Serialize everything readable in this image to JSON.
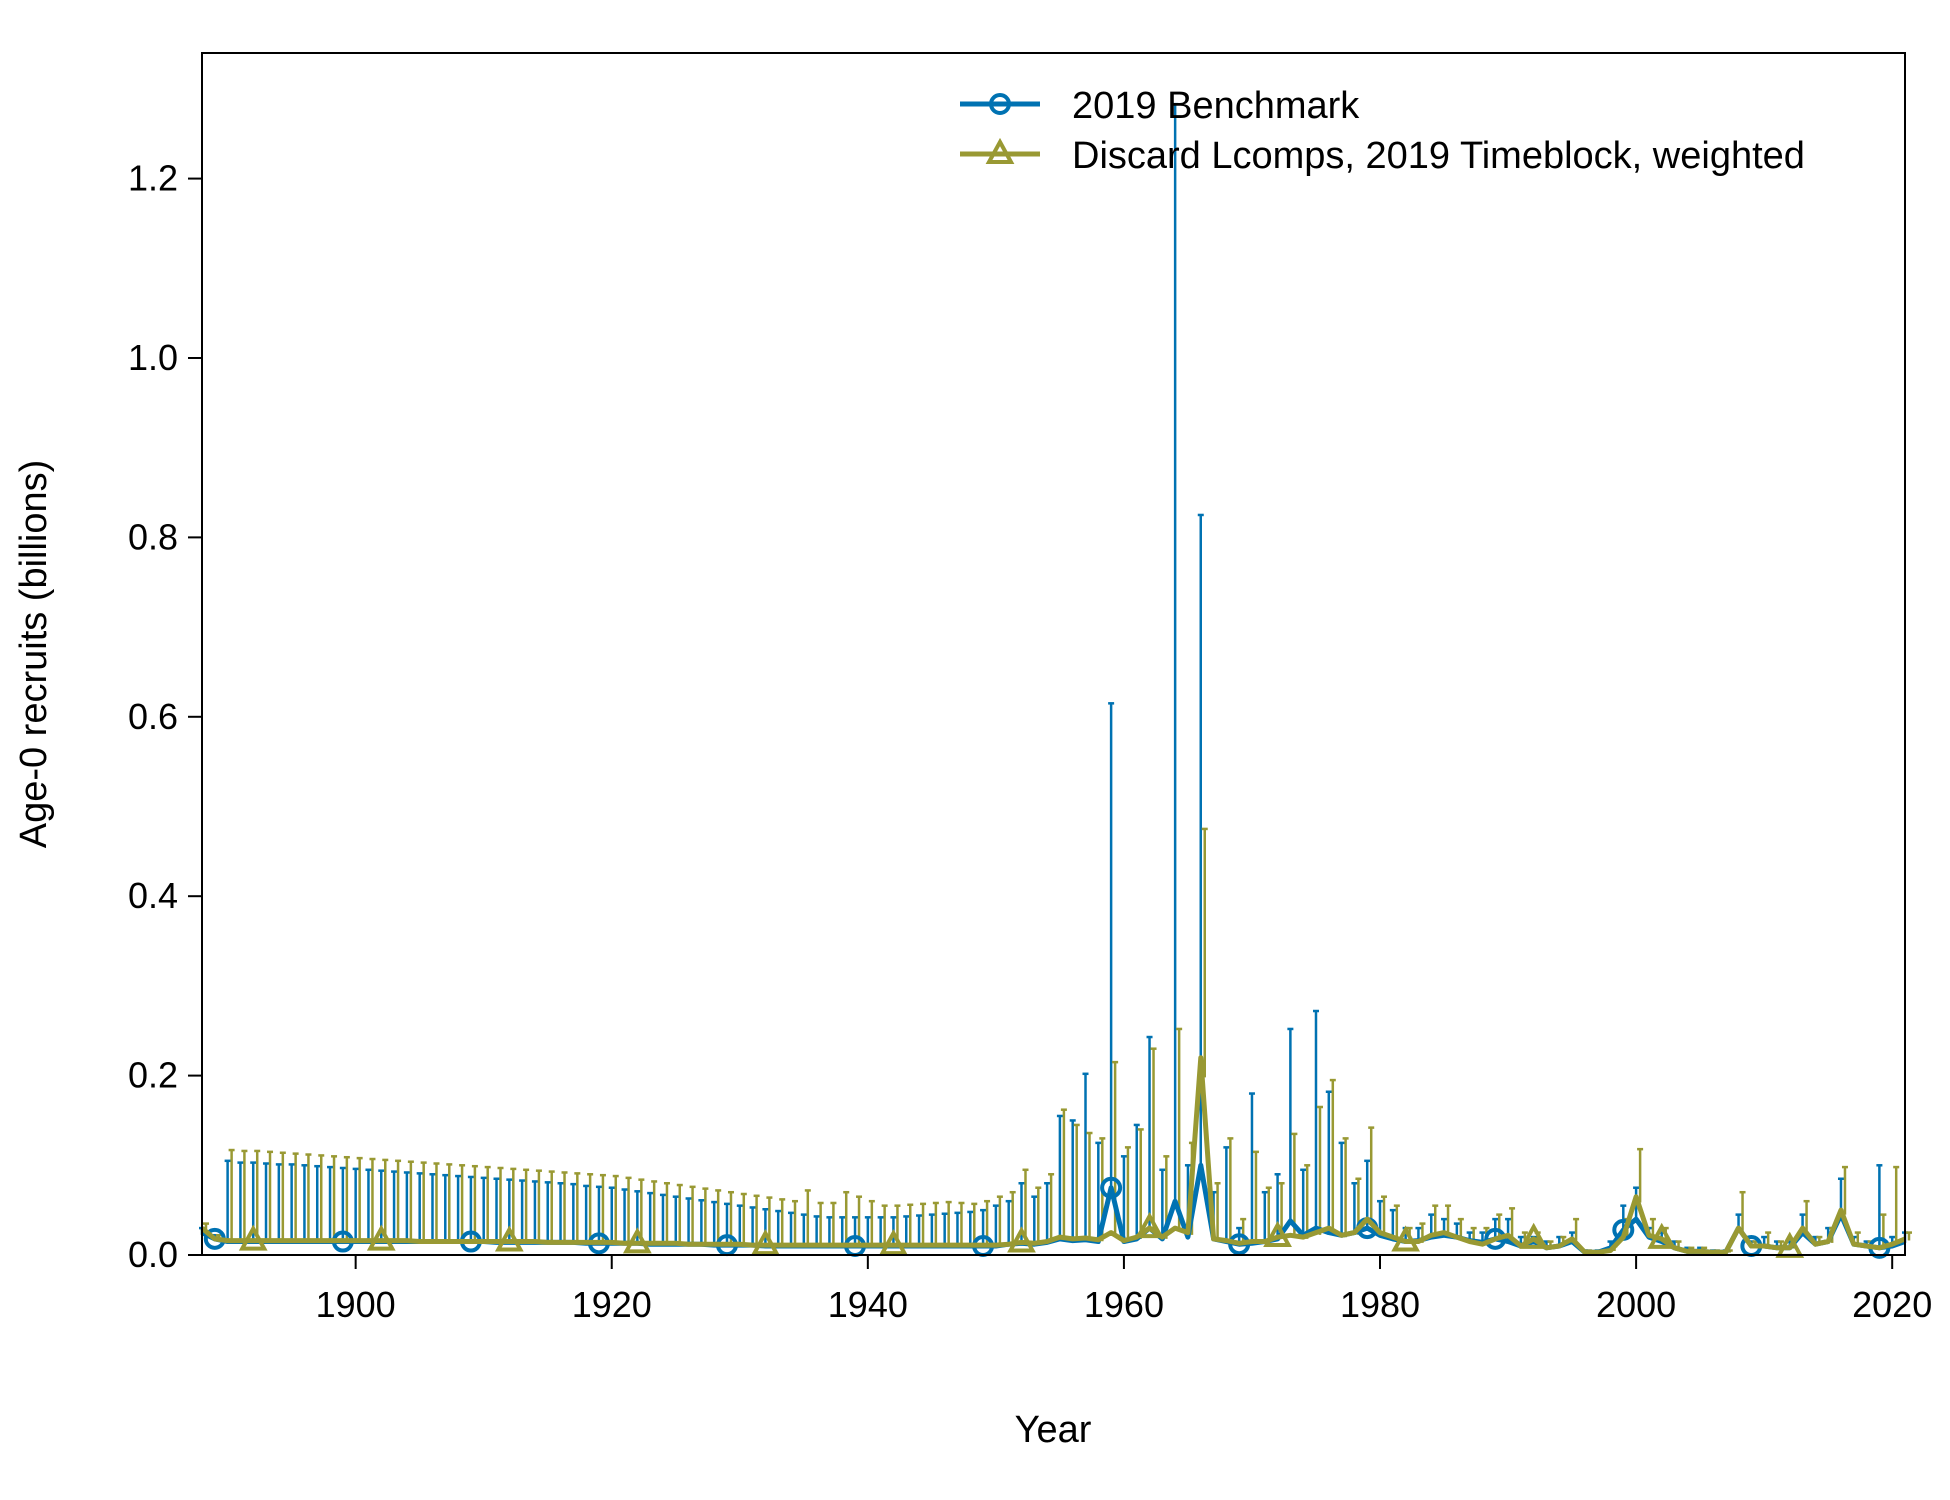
{
  "chart_data": {
    "type": "line",
    "xlabel": "Year",
    "ylabel": "Age-0 recruits (billions)",
    "xlim": [
      1888,
      2021
    ],
    "ylim": [
      0,
      1.34
    ],
    "x_ticks": [
      1900,
      1920,
      1940,
      1960,
      1980,
      2000,
      2020
    ],
    "x_tick_labels": [
      "1900",
      "1920",
      "1940",
      "1960",
      "1980",
      "2000",
      "2020"
    ],
    "y_ticks": [
      0.0,
      0.2,
      0.4,
      0.6,
      0.8,
      1.0,
      1.2
    ],
    "y_tick_labels": [
      "0.0",
      "0.2",
      "0.4",
      "0.6",
      "0.8",
      "1.0",
      "1.2"
    ],
    "legend_position": "top-right",
    "series": [
      {
        "name": "2019 Benchmark",
        "color": "#0072B2",
        "marker": "circle",
        "x": [
          1888,
          1889,
          1890,
          1891,
          1892,
          1893,
          1894,
          1895,
          1896,
          1897,
          1898,
          1899,
          1900,
          1901,
          1902,
          1903,
          1904,
          1905,
          1906,
          1907,
          1908,
          1909,
          1910,
          1911,
          1912,
          1913,
          1914,
          1915,
          1916,
          1917,
          1918,
          1919,
          1920,
          1921,
          1922,
          1923,
          1924,
          1925,
          1926,
          1927,
          1928,
          1929,
          1930,
          1931,
          1932,
          1933,
          1934,
          1935,
          1936,
          1937,
          1938,
          1939,
          1940,
          1941,
          1942,
          1943,
          1944,
          1945,
          1946,
          1947,
          1948,
          1949,
          1950,
          1951,
          1952,
          1953,
          1954,
          1955,
          1956,
          1957,
          1958,
          1959,
          1960,
          1961,
          1962,
          1963,
          1964,
          1965,
          1966,
          1967,
          1968,
          1969,
          1970,
          1971,
          1972,
          1973,
          1974,
          1975,
          1976,
          1977,
          1978,
          1979,
          1980,
          1981,
          1982,
          1983,
          1984,
          1985,
          1986,
          1987,
          1988,
          1989,
          1990,
          1991,
          1992,
          1993,
          1994,
          1995,
          1996,
          1997,
          1998,
          1999,
          2000,
          2001,
          2002,
          2003,
          2004,
          2005,
          2006,
          2007,
          2008,
          2009,
          2010,
          2011,
          2012,
          2013,
          2014,
          2015,
          2016,
          2017,
          2018,
          2019,
          2020,
          2021
        ],
        "values": [
          0.025,
          0.018,
          0.015,
          0.015,
          0.015,
          0.015,
          0.015,
          0.015,
          0.015,
          0.015,
          0.015,
          0.015,
          0.015,
          0.015,
          0.015,
          0.015,
          0.015,
          0.015,
          0.015,
          0.015,
          0.015,
          0.015,
          0.015,
          0.014,
          0.014,
          0.014,
          0.014,
          0.014,
          0.014,
          0.014,
          0.013,
          0.013,
          0.013,
          0.013,
          0.013,
          0.012,
          0.012,
          0.012,
          0.012,
          0.012,
          0.011,
          0.011,
          0.011,
          0.011,
          0.01,
          0.01,
          0.01,
          0.01,
          0.01,
          0.01,
          0.01,
          0.01,
          0.01,
          0.01,
          0.01,
          0.01,
          0.01,
          0.01,
          0.01,
          0.01,
          0.01,
          0.01,
          0.01,
          0.012,
          0.013,
          0.012,
          0.014,
          0.018,
          0.016,
          0.017,
          0.015,
          0.075,
          0.015,
          0.018,
          0.03,
          0.018,
          0.06,
          0.02,
          0.1,
          0.018,
          0.015,
          0.012,
          0.013,
          0.015,
          0.018,
          0.038,
          0.022,
          0.03,
          0.025,
          0.022,
          0.025,
          0.03,
          0.022,
          0.018,
          0.015,
          0.016,
          0.02,
          0.022,
          0.02,
          0.016,
          0.014,
          0.018,
          0.015,
          0.01,
          0.015,
          0.008,
          0.01,
          0.015,
          0.003,
          0.003,
          0.008,
          0.028,
          0.04,
          0.02,
          0.015,
          0.008,
          0.004,
          0.004,
          0.003,
          0.003,
          0.03,
          0.01,
          0.01,
          0.008,
          0.008,
          0.025,
          0.012,
          0.015,
          0.045,
          0.012,
          0.01,
          0.008,
          0.01,
          0.015
        ],
        "upper": [
          0.03,
          0.022,
          0.105,
          0.103,
          0.103,
          0.102,
          0.101,
          0.101,
          0.1,
          0.099,
          0.098,
          0.097,
          0.096,
          0.095,
          0.094,
          0.093,
          0.092,
          0.091,
          0.09,
          0.089,
          0.088,
          0.087,
          0.086,
          0.085,
          0.084,
          0.083,
          0.082,
          0.081,
          0.08,
          0.079,
          0.077,
          0.076,
          0.075,
          0.073,
          0.071,
          0.069,
          0.067,
          0.065,
          0.063,
          0.061,
          0.059,
          0.057,
          0.055,
          0.053,
          0.051,
          0.049,
          0.047,
          0.045,
          0.043,
          0.042,
          0.042,
          0.042,
          0.042,
          0.042,
          0.042,
          0.043,
          0.044,
          0.045,
          0.046,
          0.047,
          0.048,
          0.05,
          0.055,
          0.06,
          0.08,
          0.065,
          0.08,
          0.155,
          0.15,
          0.202,
          0.125,
          0.615,
          0.11,
          0.145,
          0.243,
          0.095,
          1.283,
          0.1,
          0.825,
          0.07,
          0.12,
          0.03,
          0.18,
          0.07,
          0.09,
          0.252,
          0.095,
          0.272,
          0.182,
          0.125,
          0.08,
          0.105,
          0.06,
          0.05,
          0.03,
          0.03,
          0.045,
          0.04,
          0.035,
          0.025,
          0.025,
          0.04,
          0.04,
          0.02,
          0.02,
          0.015,
          0.02,
          0.025,
          0.005,
          0.005,
          0.015,
          0.055,
          0.075,
          0.03,
          0.025,
          0.015,
          0.008,
          0.008,
          0.005,
          0.005,
          0.045,
          0.015,
          0.02,
          0.015,
          0.015,
          0.045,
          0.02,
          0.03,
          0.085,
          0.02,
          0.015,
          0.1,
          0.02,
          0.025
        ]
      },
      {
        "name": "Discard Lcomps, 2019 Timeblock, weighted",
        "color": "#999933",
        "marker": "triangle",
        "x": [
          1888,
          1889,
          1890,
          1891,
          1892,
          1893,
          1894,
          1895,
          1896,
          1897,
          1898,
          1899,
          1900,
          1901,
          1902,
          1903,
          1904,
          1905,
          1906,
          1907,
          1908,
          1909,
          1910,
          1911,
          1912,
          1913,
          1914,
          1915,
          1916,
          1917,
          1918,
          1919,
          1920,
          1921,
          1922,
          1923,
          1924,
          1925,
          1926,
          1927,
          1928,
          1929,
          1930,
          1931,
          1932,
          1933,
          1934,
          1935,
          1936,
          1937,
          1938,
          1939,
          1940,
          1941,
          1942,
          1943,
          1944,
          1945,
          1946,
          1947,
          1948,
          1949,
          1950,
          1951,
          1952,
          1953,
          1954,
          1955,
          1956,
          1957,
          1958,
          1959,
          1960,
          1961,
          1962,
          1963,
          1964,
          1965,
          1966,
          1967,
          1968,
          1969,
          1970,
          1971,
          1972,
          1973,
          1974,
          1975,
          1976,
          1977,
          1978,
          1979,
          1980,
          1981,
          1982,
          1983,
          1984,
          1985,
          1986,
          1987,
          1988,
          1989,
          1990,
          1991,
          1992,
          1993,
          1994,
          1995,
          1996,
          1997,
          1998,
          1999,
          2000,
          2001,
          2002,
          2003,
          2004,
          2005,
          2006,
          2007,
          2008,
          2009,
          2010,
          2011,
          2012,
          2013,
          2014,
          2015,
          2016,
          2017,
          2018,
          2019,
          2020,
          2021
        ],
        "values": [
          0.03,
          0.018,
          0.016,
          0.016,
          0.016,
          0.016,
          0.016,
          0.016,
          0.016,
          0.016,
          0.016,
          0.016,
          0.016,
          0.016,
          0.016,
          0.016,
          0.016,
          0.015,
          0.015,
          0.015,
          0.015,
          0.015,
          0.015,
          0.015,
          0.015,
          0.015,
          0.015,
          0.014,
          0.014,
          0.014,
          0.014,
          0.014,
          0.014,
          0.013,
          0.013,
          0.013,
          0.013,
          0.013,
          0.012,
          0.012,
          0.012,
          0.012,
          0.012,
          0.011,
          0.011,
          0.011,
          0.011,
          0.011,
          0.011,
          0.011,
          0.011,
          0.011,
          0.011,
          0.011,
          0.011,
          0.011,
          0.011,
          0.011,
          0.011,
          0.011,
          0.011,
          0.011,
          0.011,
          0.012,
          0.014,
          0.013,
          0.015,
          0.02,
          0.018,
          0.019,
          0.017,
          0.025,
          0.016,
          0.02,
          0.03,
          0.02,
          0.03,
          0.025,
          0.22,
          0.018,
          0.016,
          0.013,
          0.015,
          0.015,
          0.02,
          0.022,
          0.02,
          0.025,
          0.03,
          0.022,
          0.025,
          0.04,
          0.025,
          0.02,
          0.015,
          0.015,
          0.022,
          0.025,
          0.02,
          0.015,
          0.012,
          0.018,
          0.022,
          0.01,
          0.018,
          0.008,
          0.01,
          0.018,
          0.003,
          0.003,
          0.005,
          0.02,
          0.065,
          0.022,
          0.018,
          0.008,
          0.004,
          0.004,
          0.003,
          0.003,
          0.03,
          0.01,
          0.01,
          0.008,
          0.008,
          0.03,
          0.012,
          0.015,
          0.05,
          0.012,
          0.01,
          0.008,
          0.012,
          0.018
        ],
        "upper": [
          0.035,
          0.022,
          0.117,
          0.116,
          0.116,
          0.115,
          0.114,
          0.113,
          0.112,
          0.111,
          0.11,
          0.109,
          0.108,
          0.107,
          0.106,
          0.105,
          0.104,
          0.103,
          0.102,
          0.101,
          0.1,
          0.099,
          0.098,
          0.097,
          0.096,
          0.095,
          0.094,
          0.093,
          0.092,
          0.091,
          0.09,
          0.089,
          0.088,
          0.086,
          0.084,
          0.082,
          0.08,
          0.078,
          0.076,
          0.074,
          0.072,
          0.07,
          0.068,
          0.066,
          0.064,
          0.062,
          0.06,
          0.072,
          0.058,
          0.058,
          0.07,
          0.065,
          0.06,
          0.055,
          0.055,
          0.056,
          0.057,
          0.058,
          0.059,
          0.058,
          0.057,
          0.06,
          0.065,
          0.07,
          0.095,
          0.075,
          0.09,
          0.162,
          0.145,
          0.136,
          0.13,
          0.215,
          0.12,
          0.14,
          0.23,
          0.11,
          0.252,
          0.125,
          0.475,
          0.08,
          0.13,
          0.04,
          0.115,
          0.075,
          0.08,
          0.135,
          0.1,
          0.165,
          0.195,
          0.13,
          0.085,
          0.142,
          0.065,
          0.055,
          0.03,
          0.035,
          0.055,
          0.055,
          0.04,
          0.03,
          0.03,
          0.045,
          0.052,
          0.025,
          0.025,
          0.015,
          0.02,
          0.04,
          0.005,
          0.005,
          0.01,
          0.04,
          0.118,
          0.04,
          0.03,
          0.015,
          0.008,
          0.008,
          0.005,
          0.005,
          0.07,
          0.015,
          0.025,
          0.015,
          0.015,
          0.06,
          0.02,
          0.03,
          0.098,
          0.025,
          0.015,
          0.045,
          0.098,
          0.025
        ]
      }
    ]
  }
}
